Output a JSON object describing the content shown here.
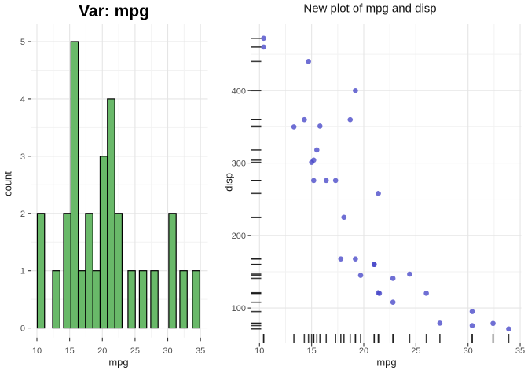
{
  "page": {
    "background": "#ffffff"
  },
  "chart_data": [
    {
      "type": "bar",
      "title": "Var: mpg",
      "xlabel": "mpg",
      "ylabel": "count",
      "x_ticks": [
        10,
        15,
        20,
        25,
        30,
        35
      ],
      "y_ticks": [
        0,
        1,
        2,
        3,
        4,
        5
      ],
      "xlim": [
        8.8,
        36.1
      ],
      "ylim": [
        -0.2,
        5.3
      ],
      "grid": "major+minor",
      "legend": "none",
      "bar_fill": "#69b969",
      "bar_stroke": "#000000",
      "binwidth": 1.12,
      "bars": [
        {
          "x": 10.05,
          "count": 2
        },
        {
          "x": 12.4,
          "count": 1
        },
        {
          "x": 14.08,
          "count": 2
        },
        {
          "x": 15.2,
          "count": 5
        },
        {
          "x": 16.31,
          "count": 1
        },
        {
          "x": 17.43,
          "count": 2
        },
        {
          "x": 18.55,
          "count": 1
        },
        {
          "x": 19.66,
          "count": 3
        },
        {
          "x": 20.78,
          "count": 4
        },
        {
          "x": 21.9,
          "count": 2
        },
        {
          "x": 23.92,
          "count": 1
        },
        {
          "x": 25.66,
          "count": 1
        },
        {
          "x": 27.4,
          "count": 1
        },
        {
          "x": 30.16,
          "count": 2
        },
        {
          "x": 31.85,
          "count": 1
        },
        {
          "x": 33.77,
          "count": 1
        }
      ]
    },
    {
      "type": "scatter",
      "title": "New plot of mpg and disp",
      "xlabel": "mpg",
      "ylabel": "disp",
      "x_ticks": [
        10,
        15,
        20,
        25,
        30,
        35
      ],
      "y_ticks": [
        100,
        200,
        300,
        400
      ],
      "xlim": [
        9.2,
        35.1
      ],
      "ylim": [
        51,
        492
      ],
      "grid": "major+minor",
      "legend": "none",
      "point_color": "#4646c8",
      "point_opacity": 0.78,
      "rug_color": "#1a1a1a",
      "points": [
        [
          21.0,
          160.0
        ],
        [
          21.0,
          160.0
        ],
        [
          22.8,
          108.0
        ],
        [
          21.4,
          258.0
        ],
        [
          18.7,
          360.0
        ],
        [
          18.1,
          225.0
        ],
        [
          14.3,
          360.0
        ],
        [
          24.4,
          146.7
        ],
        [
          22.8,
          140.8
        ],
        [
          19.2,
          167.6
        ],
        [
          17.8,
          167.6
        ],
        [
          16.4,
          275.8
        ],
        [
          17.3,
          275.8
        ],
        [
          15.2,
          275.8
        ],
        [
          10.4,
          472.0
        ],
        [
          10.4,
          460.0
        ],
        [
          14.7,
          440.0
        ],
        [
          32.4,
          78.7
        ],
        [
          30.4,
          75.7
        ],
        [
          33.9,
          71.1
        ],
        [
          21.5,
          120.1
        ],
        [
          15.5,
          318.0
        ],
        [
          15.2,
          304.0
        ],
        [
          13.3,
          350.0
        ],
        [
          19.2,
          400.0
        ],
        [
          27.3,
          79.0
        ],
        [
          26.0,
          120.3
        ],
        [
          30.4,
          95.1
        ],
        [
          15.8,
          351.0
        ],
        [
          19.7,
          145.0
        ],
        [
          15.0,
          301.0
        ],
        [
          21.4,
          121.0
        ]
      ],
      "x_rug": [
        21.0,
        21.0,
        22.8,
        21.4,
        18.7,
        18.1,
        14.3,
        24.4,
        22.8,
        19.2,
        17.8,
        16.4,
        17.3,
        15.2,
        10.4,
        10.4,
        14.7,
        32.4,
        30.4,
        33.9,
        21.5,
        15.5,
        15.2,
        13.3,
        19.2,
        27.3,
        26.0,
        30.4,
        15.8,
        19.7,
        15.0,
        21.4
      ],
      "y_rug": [
        160.0,
        160.0,
        108.0,
        258.0,
        360.0,
        225.0,
        360.0,
        146.7,
        140.8,
        167.6,
        167.6,
        275.8,
        275.8,
        275.8,
        472.0,
        460.0,
        440.0,
        78.7,
        75.7,
        71.1,
        120.1,
        318.0,
        304.0,
        350.0,
        400.0,
        79.0,
        120.3,
        95.1,
        351.0,
        145.0,
        301.0,
        121.0
      ]
    }
  ],
  "theme": {
    "grid_major": "#e5e5e5",
    "grid_minor": "#f2f2f2",
    "tick_color": "#333333",
    "tick_label_color": "#4d4d4d"
  }
}
